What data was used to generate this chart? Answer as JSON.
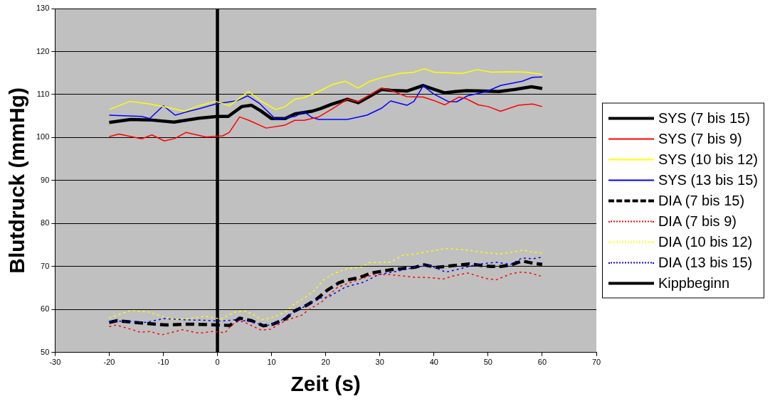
{
  "chart_data": {
    "type": "line",
    "xlabel": "Zeit (s)",
    "ylabel": "Blutdruck (mmHg)",
    "xlim": [
      -30,
      70
    ],
    "xticks": [
      -30,
      -20,
      -10,
      0,
      10,
      20,
      30,
      40,
      50,
      60,
      70
    ],
    "ylim": [
      50,
      130
    ],
    "yticks": [
      50,
      60,
      70,
      80,
      90,
      100,
      110,
      120,
      130
    ],
    "grid": "y",
    "legend": "right",
    "marker": "none",
    "series": [
      {
        "name": "SYS (7 bis 15)",
        "color": "#000000",
        "line_style": "solid",
        "x": [
          -20,
          -16,
          -12.5,
          -8,
          -3.4,
          0,
          2,
          4.5,
          6.3,
          8,
          10,
          12.5,
          14.3,
          17.4,
          19,
          21,
          24,
          26,
          28,
          30.3,
          32,
          35,
          38,
          40,
          42,
          44,
          46,
          49,
          52,
          55,
          58,
          60
        ],
        "values": [
          103.5,
          104.2,
          104.1,
          103.6,
          104.5,
          104.9,
          104.9,
          107.2,
          107.5,
          106.2,
          104.4,
          104.4,
          105.5,
          106.1,
          106.7,
          107.7,
          108.9,
          108.1,
          109.5,
          111.2,
          111,
          110.8,
          112.1,
          111.2,
          110.4,
          110.7,
          110.9,
          110.8,
          110.7,
          111.2,
          111.8,
          111.4
        ]
      },
      {
        "name": "SYS (7 bis 9)",
        "color": "#ff0000",
        "line_style": "solid",
        "x": [
          -20,
          -18.2,
          -14,
          -12.1,
          -9.8,
          -7.8,
          -5.8,
          -2.1,
          1,
          2.2,
          4.1,
          5.8,
          9,
          12.5,
          14.3,
          16,
          18.7,
          21,
          24,
          26,
          28,
          30.3,
          32,
          35,
          38,
          40,
          42,
          44.6,
          46,
          48.2,
          50,
          52.3,
          55.6,
          58.2,
          60
        ],
        "values": [
          100.2,
          100.8,
          99.7,
          100.6,
          99.2,
          99.8,
          101.2,
          100.1,
          100.4,
          101.2,
          104.8,
          104,
          102.2,
          102.9,
          104,
          104,
          104.8,
          106.5,
          108.9,
          108.3,
          109.8,
          111.5,
          111,
          109.5,
          109.4,
          108.6,
          107.6,
          109.4,
          109,
          107.6,
          107.2,
          106.1,
          107.5,
          107.8,
          107.2
        ]
      },
      {
        "name": "SYS (10 bis 12)",
        "color": "#ffff00",
        "line_style": "solid",
        "x": [
          -20,
          -16.2,
          -12.5,
          -8.8,
          -6.1,
          -3.4,
          -0.3,
          2.2,
          5.8,
          8,
          10.8,
          12.5,
          14.3,
          16,
          18.7,
          21.4,
          23.6,
          26,
          28,
          30.3,
          33.7,
          36.4,
          38.2,
          40,
          45.3,
          48,
          50.6,
          54.2,
          57,
          60
        ],
        "values": [
          106.5,
          108.4,
          107.8,
          106.9,
          106.1,
          107.4,
          108.4,
          107.4,
          110.7,
          108.5,
          106.5,
          107.2,
          108.9,
          109.3,
          110.7,
          112.4,
          113.1,
          111.5,
          113,
          113.9,
          114.9,
          115.2,
          116,
          115.2,
          114.9,
          115.8,
          115.2,
          115.3,
          115.2,
          114.7
        ]
      },
      {
        "name": "SYS (13 bis 15)",
        "color": "#0000ff",
        "line_style": "solid",
        "x": [
          -20,
          -14,
          -12.5,
          -10,
          -7.8,
          -5.3,
          -3.4,
          -0.3,
          3.7,
          5.6,
          7.7,
          10.8,
          14.3,
          16,
          17.4,
          18.7,
          24,
          27.6,
          30.3,
          32,
          35,
          36.3,
          38,
          40,
          42.6,
          44.2,
          46.2,
          49.7,
          52.3,
          56.3,
          58.2,
          60
        ],
        "values": [
          105.2,
          104.9,
          104.4,
          107.4,
          105.2,
          106.1,
          106.7,
          107.8,
          108.6,
          109.7,
          108,
          104.2,
          104.9,
          106,
          104.7,
          104.2,
          104.2,
          105.2,
          106.8,
          108.5,
          107.5,
          108.4,
          112,
          110.1,
          108.4,
          108.3,
          109.7,
          110.7,
          112.1,
          113.1,
          114,
          114.1
        ]
      },
      {
        "name": "DIA (7 bis 15)",
        "color": "#000000",
        "line_style": "dashed",
        "x": [
          -20,
          -18.5,
          -13.6,
          -9.6,
          -5.6,
          -1.7,
          2.3,
          4.1,
          6.3,
          8.5,
          10.3,
          12.5,
          14.3,
          16.5,
          18.3,
          20.3,
          22.4,
          24,
          26.2,
          28.4,
          32.4,
          36.4,
          38.2,
          40.4,
          44.3,
          46.5,
          50.5,
          52.3,
          54.3,
          56.3,
          58.5,
          60
        ],
        "values": [
          57,
          57.4,
          56.8,
          56.4,
          56.6,
          56.5,
          56.3,
          58,
          57.4,
          56.2,
          56.6,
          57.8,
          59.7,
          61,
          62.4,
          64.5,
          66.2,
          66.9,
          67.4,
          68.5,
          69.3,
          69.8,
          70.4,
          69.8,
          70.3,
          70.6,
          70,
          70,
          70.4,
          71.3,
          70.7,
          70.5
        ]
      },
      {
        "name": "DIA (7 bis 9)",
        "color": "#ff0000",
        "line_style": "dotted",
        "x": [
          -20,
          -18.7,
          -16,
          -14.2,
          -12.5,
          -10.3,
          -6.5,
          -3.4,
          -0.8,
          1.4,
          2.7,
          4.1,
          5.4,
          8.1,
          9.8,
          12.5,
          15.6,
          16.9,
          19.3,
          22.2,
          25.3,
          28.8,
          31.9,
          36.4,
          39.5,
          41.7,
          43.5,
          46.2,
          49.7,
          51.5,
          54.2,
          55.9,
          57.7,
          59.7
        ],
        "values": [
          56,
          56.4,
          55.4,
          54.7,
          54.9,
          54.1,
          55.3,
          54.5,
          54.9,
          54.6,
          56.5,
          57.4,
          56.8,
          55.2,
          55.4,
          57.4,
          58.7,
          60,
          61.8,
          65.2,
          66.6,
          68.1,
          68.1,
          67.5,
          67.4,
          67.1,
          67.8,
          68.5,
          67.2,
          66.9,
          68.3,
          68.7,
          68.5,
          67.8
        ]
      },
      {
        "name": "DIA (10 bis 12)",
        "color": "#ffff00",
        "line_style": "dotted",
        "x": [
          -20,
          -17.4,
          -16,
          -12.5,
          -10.8,
          -8.1,
          -4.6,
          -2.4,
          0.7,
          3.2,
          5,
          6.7,
          8.1,
          10.3,
          12.5,
          14.3,
          16,
          17.8,
          19.6,
          21.4,
          24,
          26.8,
          28,
          30.6,
          32,
          34.2,
          36.4,
          38.2,
          42.2,
          46.2,
          49.7,
          51.9,
          54.2,
          56.3,
          58.2,
          60
        ],
        "values": [
          58,
          59.2,
          59.8,
          59.4,
          58.6,
          57.7,
          58,
          58.4,
          57.8,
          59.4,
          59.7,
          58.8,
          57.6,
          58.2,
          59.4,
          61.4,
          62.6,
          64.3,
          66.9,
          68.3,
          69.5,
          69.9,
          70.9,
          71,
          71,
          72.6,
          72.9,
          73.3,
          74.2,
          73.8,
          73.2,
          72.9,
          73.3,
          73.8,
          73.4,
          73.1
        ]
      },
      {
        "name": "DIA (13 bis 15)",
        "color": "#0000ff",
        "line_style": "dotted",
        "x": [
          -20,
          -16.9,
          -13.3,
          -9.8,
          -6.3,
          -2.7,
          0.7,
          3.2,
          5.8,
          8.9,
          11.2,
          13.9,
          16.5,
          18.7,
          20.5,
          23.6,
          27.1,
          29.7,
          32.4,
          36.4,
          39.1,
          42.2,
          44.3,
          47.9,
          51.5,
          54.2,
          56.3,
          58.2,
          59.7
        ],
        "values": [
          57.3,
          57.3,
          57,
          57.9,
          57.6,
          57.5,
          57.3,
          57.6,
          57.3,
          56.2,
          57,
          59.2,
          61,
          62.6,
          62.9,
          65.2,
          66.4,
          68.1,
          68.7,
          69.8,
          70.3,
          68.7,
          69.3,
          70.5,
          71,
          70.5,
          72,
          71.8,
          72.1
        ]
      },
      {
        "name": "Kippbeginn",
        "color": "#000000",
        "line_style": "solid",
        "x": [
          0,
          0
        ],
        "values": [
          50,
          130
        ]
      }
    ]
  }
}
